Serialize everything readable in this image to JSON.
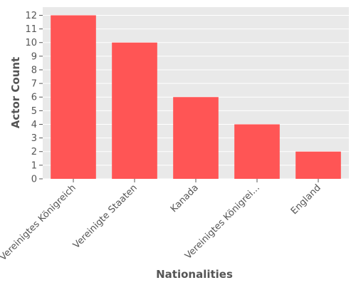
{
  "chart_data": {
    "type": "bar",
    "categories": [
      "Vereinigtes Königreich",
      "Vereinigte Staaten",
      "Kanada",
      "Vereinigtes Königrei...",
      "England"
    ],
    "values": [
      12,
      10,
      6,
      4,
      2
    ],
    "title": "",
    "xlabel": "Nationalities",
    "ylabel": "Actor Count",
    "ylim": [
      0,
      12.6
    ],
    "yticks": [
      0,
      1,
      2,
      3,
      4,
      5,
      6,
      7,
      8,
      9,
      10,
      11,
      12
    ],
    "grid": true,
    "legend": "none",
    "colors": {
      "bar": "#ff5555",
      "plot_background": "#e9e9e9",
      "grid": "#ffffff",
      "text": "#555555"
    }
  }
}
